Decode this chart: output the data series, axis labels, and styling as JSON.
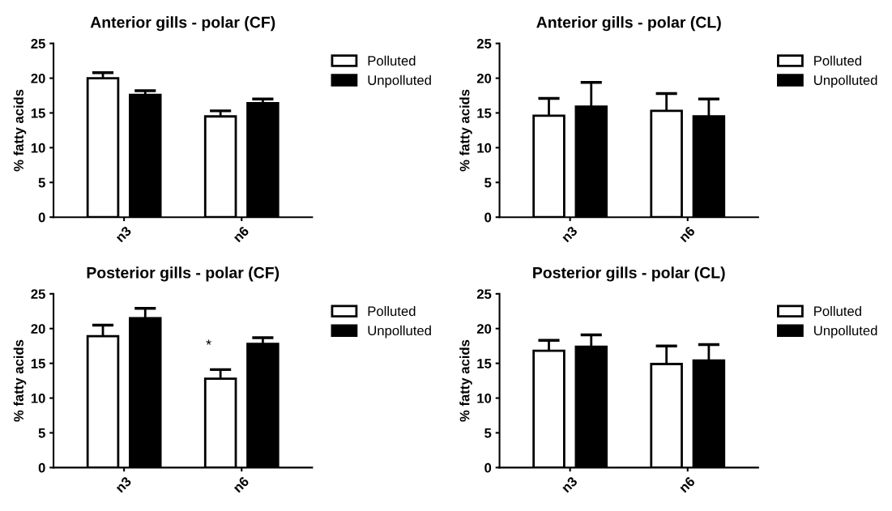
{
  "chart_data": [
    {
      "type": "bar",
      "title": "Anterior gills - polar (CF)",
      "ylabel": "% fatty acids",
      "categories": [
        "n3",
        "n6"
      ],
      "ylim": [
        0,
        25
      ],
      "yticks": [
        0,
        5,
        10,
        15,
        20,
        25
      ],
      "legend": "right",
      "series": [
        {
          "name": "Polluted",
          "color": "#ffffff",
          "values": [
            20.0,
            14.5
          ],
          "errors": [
            [
              20.0,
              20.8
            ],
            [
              14.5,
              15.3
            ]
          ]
        },
        {
          "name": "Unpolluted",
          "color": "#000000",
          "values": [
            17.6,
            16.4
          ],
          "errors": [
            [
              17.6,
              18.2
            ],
            [
              16.4,
              17.0
            ]
          ]
        }
      ]
    },
    {
      "type": "bar",
      "title": "Anterior gills - polar (CL)",
      "ylabel": "% fatty acids",
      "categories": [
        "n3",
        "n6"
      ],
      "ylim": [
        0,
        25
      ],
      "yticks": [
        0,
        5,
        10,
        15,
        20,
        25
      ],
      "legend": "right",
      "series": [
        {
          "name": "Polluted",
          "color": "#ffffff",
          "values": [
            14.6,
            15.3
          ],
          "errors": [
            [
              14.6,
              17.1
            ],
            [
              15.3,
              17.8
            ]
          ]
        },
        {
          "name": "Unpolluted",
          "color": "#000000",
          "values": [
            15.9,
            14.5
          ],
          "errors": [
            [
              15.9,
              19.4
            ],
            [
              14.5,
              17.0
            ]
          ]
        }
      ]
    },
    {
      "type": "bar",
      "title": "Posterior gills - polar (CF)",
      "ylabel": "% fatty acids",
      "categories": [
        "n3",
        "n6"
      ],
      "ylim": [
        0,
        25
      ],
      "yticks": [
        0,
        5,
        10,
        15,
        20,
        25
      ],
      "legend": "right",
      "annotations": [
        "*"
      ],
      "series": [
        {
          "name": "Polluted",
          "color": "#ffffff",
          "values": [
            18.9,
            12.8
          ],
          "errors": [
            [
              18.9,
              20.5
            ],
            [
              12.8,
              14.1
            ]
          ]
        },
        {
          "name": "Unpolluted",
          "color": "#000000",
          "values": [
            21.5,
            17.8
          ],
          "errors": [
            [
              21.5,
              22.9
            ],
            [
              17.8,
              18.7
            ]
          ]
        }
      ]
    },
    {
      "type": "bar",
      "title": "Posterior gills - polar (CL)",
      "ylabel": "% fatty acids",
      "categories": [
        "n3",
        "n6"
      ],
      "ylim": [
        0,
        25
      ],
      "yticks": [
        0,
        5,
        10,
        15,
        20,
        25
      ],
      "legend": "right",
      "series": [
        {
          "name": "Polluted",
          "color": "#ffffff",
          "values": [
            16.8,
            14.9
          ],
          "errors": [
            [
              16.8,
              18.3
            ],
            [
              14.9,
              17.5
            ]
          ]
        },
        {
          "name": "Unpolluted",
          "color": "#000000",
          "values": [
            17.4,
            15.4
          ],
          "errors": [
            [
              17.4,
              19.1
            ],
            [
              15.4,
              17.7
            ]
          ]
        }
      ]
    }
  ]
}
